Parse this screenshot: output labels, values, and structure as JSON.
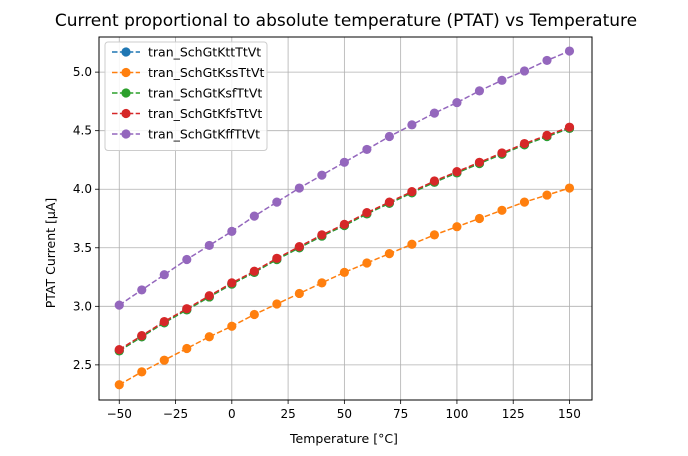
{
  "chart_data": {
    "type": "line",
    "title": "Current proportional to absolute temperature (PTAT) vs Temperature",
    "xlabel": "Temperature [°C]",
    "ylabel": "PTAT Current [μA]",
    "xlim": [
      -59,
      160
    ],
    "ylim": [
      2.2,
      5.3
    ],
    "xticks": [
      -50,
      -25,
      0,
      25,
      50,
      75,
      100,
      125,
      150
    ],
    "xtick_labels": [
      "−50",
      "−25",
      "0",
      "25",
      "50",
      "75",
      "100",
      "125",
      "150"
    ],
    "yticks": [
      2.5,
      3.0,
      3.5,
      4.0,
      4.5,
      5.0
    ],
    "ytick_labels": [
      "2.5",
      "3.0",
      "3.5",
      "4.0",
      "4.5",
      "5.0"
    ],
    "grid": true,
    "legend_position": "top-left",
    "line_style": "dashed",
    "marker": "circle",
    "x": [
      -50,
      -40,
      -30,
      -20,
      -10,
      0,
      10,
      20,
      30,
      40,
      50,
      60,
      70,
      80,
      90,
      100,
      110,
      120,
      130,
      140,
      150
    ],
    "series": [
      {
        "name": "tran_SchGtKttTtVt",
        "color": "#1f77b4",
        "values": [
          2.62,
          2.74,
          2.86,
          2.97,
          3.08,
          3.19,
          3.29,
          3.4,
          3.5,
          3.6,
          3.69,
          3.79,
          3.88,
          3.97,
          4.06,
          4.14,
          4.22,
          4.3,
          4.38,
          4.45,
          4.52
        ]
      },
      {
        "name": "tran_SchGtKssTtVt",
        "color": "#ff7f0e",
        "values": [
          2.33,
          2.44,
          2.54,
          2.64,
          2.74,
          2.83,
          2.93,
          3.02,
          3.11,
          3.2,
          3.29,
          3.37,
          3.45,
          3.53,
          3.61,
          3.68,
          3.75,
          3.82,
          3.89,
          3.95,
          4.01
        ]
      },
      {
        "name": "tran_SchGtKsfTtVt",
        "color": "#2ca02c",
        "values": [
          2.62,
          2.74,
          2.86,
          2.97,
          3.08,
          3.19,
          3.29,
          3.4,
          3.5,
          3.6,
          3.69,
          3.79,
          3.88,
          3.97,
          4.06,
          4.14,
          4.22,
          4.3,
          4.38,
          4.45,
          4.52
        ]
      },
      {
        "name": "tran_SchGtKfsTtVt",
        "color": "#d62728",
        "values": [
          2.63,
          2.75,
          2.87,
          2.98,
          3.09,
          3.2,
          3.3,
          3.41,
          3.51,
          3.61,
          3.7,
          3.8,
          3.89,
          3.98,
          4.07,
          4.15,
          4.23,
          4.31,
          4.39,
          4.46,
          4.53
        ]
      },
      {
        "name": "tran_SchGtKffTtVt",
        "color": "#9467bd",
        "values": [
          3.01,
          3.14,
          3.27,
          3.4,
          3.52,
          3.64,
          3.77,
          3.89,
          4.01,
          4.12,
          4.23,
          4.34,
          4.45,
          4.55,
          4.65,
          4.74,
          4.84,
          4.93,
          5.01,
          5.1,
          5.18
        ]
      }
    ]
  }
}
